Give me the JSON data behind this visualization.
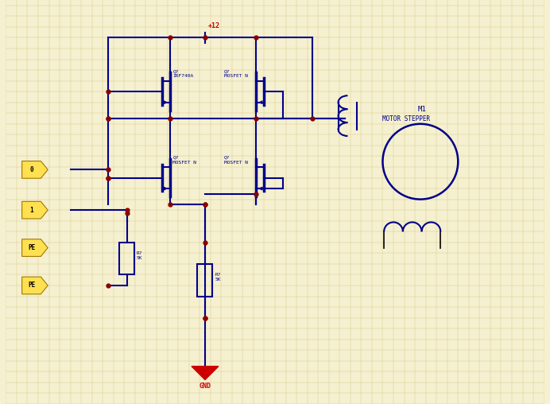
{
  "bg_color": "#f5f0d0",
  "grid_color": "#d4c880",
  "line_color": "#00008B",
  "dot_color": "#8B0000",
  "text_color": "#00008B",
  "red_color": "#CC0000",
  "figsize": [
    6.92,
    5.08
  ],
  "dpi": 100,
  "vcc_label": "+12",
  "gnd_label": "GND",
  "q1_label": "Q?\nIRF740A",
  "q2_label": "Q?\nMOSFET N",
  "q3_label": "Q?\nMOSFET N",
  "q4_label": "Q?\nMOSFET N",
  "r1_label": "R?\n5K",
  "r2_label": "R?\n5K",
  "motor_label1": "M1",
  "motor_label2": "MOTOR STEPPER",
  "pin0": "0",
  "pin1": "1",
  "pin2": "PE",
  "pin3": "PE"
}
